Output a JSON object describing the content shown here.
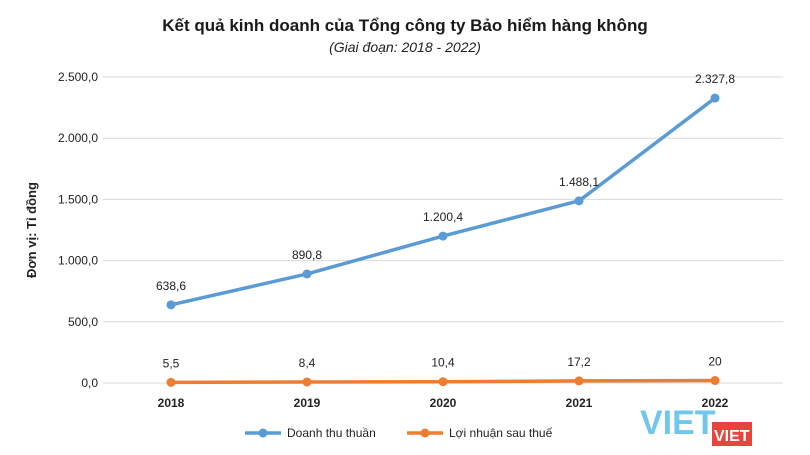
{
  "chart_data": {
    "type": "line",
    "title": "Kết quả kinh doanh của Tổng công ty Bảo hiểm hàng không",
    "subtitle": "(Giai đoạn: 2018 - 2022)",
    "ylabel": "Đơn vị: Tỉ đồng",
    "categories": [
      "2018",
      "2019",
      "2020",
      "2021",
      "2022"
    ],
    "ylim": [
      0,
      2500
    ],
    "yticks": [
      0,
      500,
      1000,
      1500,
      2000,
      2500
    ],
    "ytick_labels": [
      "0,0",
      "500,0",
      "1.000,0",
      "1.500,0",
      "2.000,0",
      "2.500,0"
    ],
    "grid": true,
    "legend_position": "bottom",
    "series": [
      {
        "name": "Doanh thu thuần",
        "values": [
          638.6,
          890.8,
          1200.4,
          1488.1,
          2327.8
        ],
        "labels": [
          "638,6",
          "890,8",
          "1.200,4",
          "1.488,1",
          "2.327,8"
        ],
        "color": "#5b9bd5"
      },
      {
        "name": "Lợi nhuận sau thuế",
        "values": [
          5.5,
          8.4,
          10.4,
          17.2,
          20
        ],
        "labels": [
          "5,5",
          "8,4",
          "10,4",
          "17,2",
          "20"
        ],
        "color": "#ed7d31"
      }
    ]
  },
  "watermark": {
    "text": "VIET",
    "colors": {
      "blue": "#3fb6e6",
      "red": "#e2231a"
    }
  }
}
